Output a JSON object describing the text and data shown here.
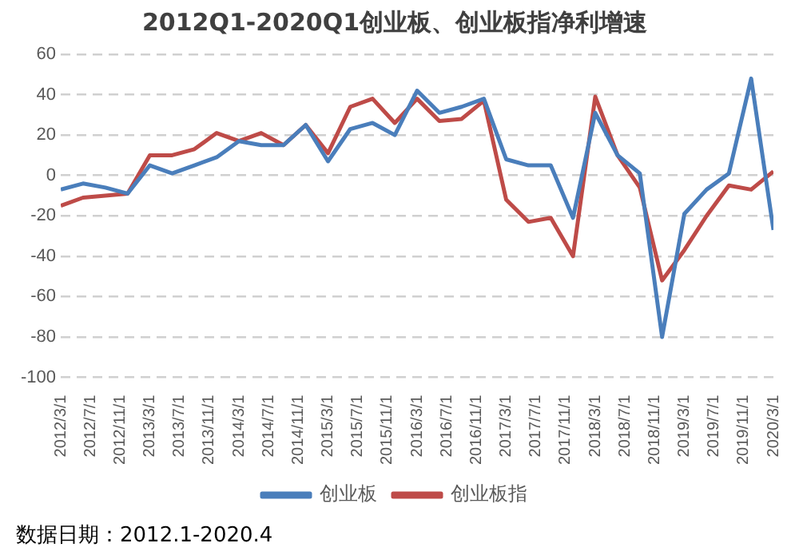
{
  "chart_data": {
    "type": "line",
    "title": "2012Q1-2020Q1创业板、创业板指净利增速",
    "x": [
      "2012-03",
      "2012-06",
      "2012-09",
      "2012-12",
      "2013-03",
      "2013-06",
      "2013-09",
      "2013-12",
      "2014-03",
      "2014-06",
      "2014-09",
      "2014-12",
      "2015-03",
      "2015-06",
      "2015-09",
      "2015-12",
      "2016-03",
      "2016-06",
      "2016-09",
      "2016-12",
      "2017-03",
      "2017-06",
      "2017-09",
      "2017-12",
      "2018-03",
      "2018-06",
      "2018-09",
      "2018-12",
      "2019-03",
      "2019-06",
      "2019-09",
      "2019-12",
      "2020-03"
    ],
    "series": [
      {
        "name": "创业板",
        "color": "#4a7ebb",
        "values": [
          -7,
          -4,
          -6,
          -9,
          5,
          1,
          5,
          9,
          17,
          15,
          15,
          25,
          7,
          23,
          26,
          20,
          42,
          31,
          34,
          38,
          8,
          5,
          5,
          -21,
          31,
          10,
          1,
          -80,
          -19,
          -7,
          1,
          48,
          -27
        ]
      },
      {
        "name": "创业板指",
        "color": "#be4b48",
        "values": [
          -15,
          -11,
          -10,
          -9,
          10,
          10,
          13,
          21,
          17,
          21,
          15,
          25,
          11,
          34,
          38,
          26,
          38,
          27,
          28,
          37,
          -12,
          -23,
          -21,
          -40,
          39,
          10,
          -6,
          -52,
          -37,
          -20,
          -5,
          -7,
          2
        ]
      }
    ],
    "xlim": [
      "2012-03",
      "2020-03"
    ],
    "xticks": [
      {
        "value": "2012-03",
        "label": "2012/3/1"
      },
      {
        "value": "2012-07",
        "label": "2012/7/1"
      },
      {
        "value": "2012-11",
        "label": "2012/11/1"
      },
      {
        "value": "2013-03",
        "label": "2013/3/1"
      },
      {
        "value": "2013-07",
        "label": "2013/7/1"
      },
      {
        "value": "2013-11",
        "label": "2013/11/1"
      },
      {
        "value": "2014-03",
        "label": "2014/3/1"
      },
      {
        "value": "2014-07",
        "label": "2014/7/1"
      },
      {
        "value": "2014-11",
        "label": "2014/11/1"
      },
      {
        "value": "2015-03",
        "label": "2015/3/1"
      },
      {
        "value": "2015-07",
        "label": "2015/7/1"
      },
      {
        "value": "2015-11",
        "label": "2015/11/1"
      },
      {
        "value": "2016-03",
        "label": "2016/3/1"
      },
      {
        "value": "2016-07",
        "label": "2016/7/1"
      },
      {
        "value": "2016-11",
        "label": "2016/11/1"
      },
      {
        "value": "2017-03",
        "label": "2017/3/1"
      },
      {
        "value": "2017-07",
        "label": "2017/7/1"
      },
      {
        "value": "2017-11",
        "label": "2017/11/1"
      },
      {
        "value": "2018-03",
        "label": "2018/3/1"
      },
      {
        "value": "2018-07",
        "label": "2018/7/1"
      },
      {
        "value": "2018-11",
        "label": "2018/11/1"
      },
      {
        "value": "2019-03",
        "label": "2019/3/1"
      },
      {
        "value": "2019-07",
        "label": "2019/7/1"
      },
      {
        "value": "2019-11",
        "label": "2019/11/1"
      },
      {
        "value": "2020-03",
        "label": "2020/3/1"
      }
    ],
    "ylim": [
      -100,
      60
    ],
    "yticks": [
      -100,
      -80,
      -60,
      -40,
      -20,
      0,
      20,
      40,
      60
    ],
    "grid": "y",
    "legend": "bottom",
    "marker": "none",
    "line_style": "solid",
    "annotations": [
      "数据日期：2012.1-2020.4"
    ]
  }
}
